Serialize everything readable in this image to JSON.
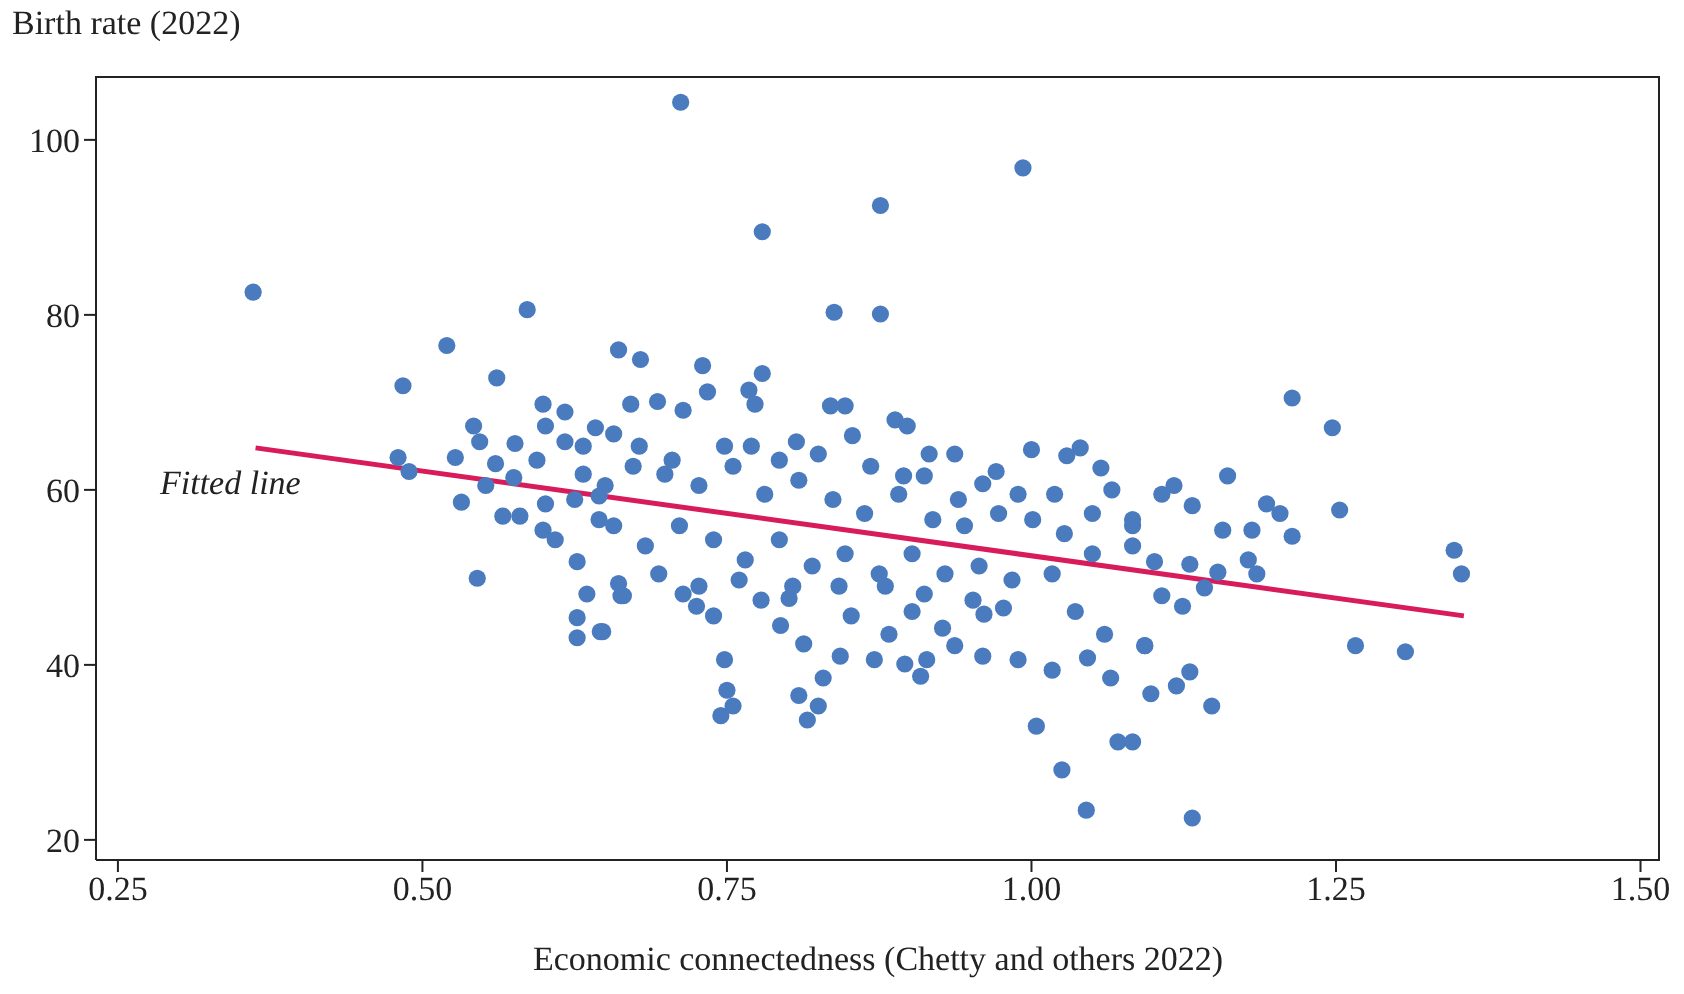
{
  "chart_data": {
    "type": "scatter",
    "xlabel": "Economic connectedness (Chetty and others 2022)",
    "ylabel": "Birth rate (2022)",
    "xlim": [
      0.232,
      1.516
    ],
    "ylim": [
      17.7,
      107.3
    ],
    "xticks": [
      {
        "value": 0.25,
        "label": "0.25"
      },
      {
        "value": 0.5,
        "label": "0.50"
      },
      {
        "value": 0.75,
        "label": "0.75"
      },
      {
        "value": 1,
        "label": "1.00"
      },
      {
        "value": 1.25,
        "label": "1.25"
      },
      {
        "value": 1.5,
        "label": "1.50"
      }
    ],
    "yticks": [
      20,
      40,
      60,
      80,
      100
    ],
    "grid": false,
    "legend": false,
    "marker": "circle",
    "annotations": [
      "Fitted line"
    ],
    "series": [
      {
        "color": "#4a7bbf",
        "x": [
          0.361,
          0.484,
          0.52,
          0.586,
          0.561,
          0.48,
          0.489,
          0.545,
          0.712,
          0.993,
          0.876,
          0.779,
          0.838,
          0.876,
          1.045,
          1.025,
          1.004,
          0.745,
          0.816,
          1.071,
          1.083,
          1.214,
          1.247,
          1.253,
          1.347,
          1.353,
          1.266,
          1.307,
          1.132,
          1.161,
          1.148,
          1.13,
          1.119,
          1.098,
          1.093,
          1.193,
          1.204,
          1.181,
          1.214,
          1.178,
          1.185,
          1.153,
          1.142,
          1.124,
          1.107,
          1.13,
          1.101,
          1.083,
          1.132,
          1.117,
          1.107,
          1.083,
          1.157,
          0.888,
          0.898,
          1.0,
          1.04,
          1.029,
          1.057,
          0.971,
          0.916,
          0.937,
          0.661,
          0.679,
          0.73,
          0.734,
          0.779,
          0.768,
          0.773,
          0.835,
          0.847,
          0.714,
          0.693,
          0.671,
          0.853,
          0.807,
          0.648,
          0.663,
          0.748,
          0.75,
          0.755,
          0.809,
          0.825,
          0.829,
          0.843,
          0.871,
          0.896,
          0.909,
          0.914,
          0.883,
          0.927,
          0.937,
          0.96,
          0.989,
          1.017,
          1.046,
          1.065,
          1.093,
          1.06,
          1.036,
          0.794,
          0.813,
          0.739,
          0.725,
          0.714,
          0.778,
          0.801,
          0.852,
          0.902,
          0.961,
          0.977,
          0.627,
          0.635,
          0.627,
          0.627,
          0.646,
          0.661,
          0.665,
          0.532,
          0.552,
          0.566,
          0.58,
          0.599,
          0.609,
          0.542,
          0.547,
          0.576,
          0.599,
          0.617,
          0.601,
          0.642,
          0.617,
          0.527,
          0.56,
          0.575,
          0.594,
          0.601,
          0.632,
          0.657,
          0.632,
          0.65,
          0.625,
          0.645,
          0.645,
          0.673,
          0.699,
          0.727,
          0.755,
          0.781,
          0.809,
          0.837,
          0.863,
          0.891,
          0.919,
          0.945,
          0.973,
          1.001,
          1.027,
          1.05,
          1.083,
          0.657,
          0.683,
          0.711,
          0.739,
          0.765,
          0.793,
          0.82,
          0.847,
          0.875,
          0.902,
          0.929,
          0.957,
          0.984,
          1.017,
          0.694,
          0.727,
          0.76,
          0.804,
          0.842,
          0.88,
          0.912,
          0.952,
          0.678,
          0.705,
          0.748,
          0.77,
          0.793,
          0.825,
          0.868,
          0.895,
          0.912,
          0.94,
          0.96,
          0.989,
          1.019,
          1.05,
          1.066
        ],
        "values": [
          82.6,
          71.9,
          76.5,
          80.6,
          72.8,
          63.7,
          62.1,
          49.9,
          104.3,
          96.8,
          92.5,
          89.5,
          80.3,
          80.1,
          23.4,
          28.0,
          33.0,
          34.2,
          33.7,
          31.2,
          31.2,
          70.5,
          67.1,
          57.7,
          53.1,
          50.4,
          42.2,
          41.5,
          22.5,
          61.6,
          35.3,
          39.2,
          37.6,
          36.7,
          42.2,
          58.4,
          57.3,
          55.4,
          54.7,
          52.0,
          50.4,
          50.6,
          48.8,
          46.7,
          47.9,
          51.5,
          51.8,
          53.6,
          58.2,
          60.5,
          59.5,
          56.6,
          55.4,
          68.0,
          67.3,
          64.6,
          64.8,
          63.9,
          62.5,
          62.1,
          64.1,
          64.1,
          76.0,
          74.9,
          74.2,
          71.2,
          73.3,
          71.4,
          69.8,
          69.6,
          69.6,
          69.1,
          70.1,
          69.8,
          66.2,
          65.5,
          43.8,
          47.9,
          40.6,
          37.1,
          35.3,
          36.5,
          35.3,
          38.5,
          41.0,
          40.6,
          40.1,
          38.7,
          40.6,
          43.5,
          44.2,
          42.2,
          41.0,
          40.6,
          39.4,
          40.8,
          38.5,
          42.2,
          43.5,
          46.1,
          44.5,
          42.4,
          45.6,
          46.7,
          48.1,
          47.4,
          47.6,
          45.6,
          46.1,
          45.8,
          46.5,
          51.8,
          48.1,
          45.4,
          43.1,
          43.8,
          49.3,
          47.9,
          58.6,
          60.5,
          57.0,
          57.0,
          55.4,
          54.3,
          67.3,
          65.5,
          65.3,
          69.8,
          68.9,
          67.3,
          67.1,
          65.5,
          63.7,
          63.0,
          61.4,
          63.4,
          58.4,
          65.0,
          66.4,
          61.8,
          60.5,
          58.9,
          56.6,
          59.3,
          62.7,
          61.8,
          60.5,
          62.7,
          59.5,
          61.1,
          58.9,
          57.3,
          59.5,
          56.6,
          55.9,
          57.3,
          56.6,
          55.0,
          52.7,
          55.9,
          55.9,
          53.6,
          55.9,
          54.3,
          52.0,
          54.3,
          51.3,
          52.7,
          50.4,
          52.7,
          50.4,
          51.3,
          49.7,
          50.4,
          50.4,
          49.0,
          49.7,
          49.0,
          49.0,
          49.0,
          48.1,
          47.4,
          65.0,
          63.4,
          65.0,
          65.0,
          63.4,
          64.1,
          62.7,
          61.6,
          61.6,
          58.9,
          60.7,
          59.5,
          59.5,
          57.3,
          60.0
        ]
      },
      {
        "type": "line",
        "color": "#d81b5a",
        "marker": "none",
        "x": [
          0.363,
          1.355
        ],
        "values": [
          64.8,
          45.6
        ]
      }
    ]
  }
}
